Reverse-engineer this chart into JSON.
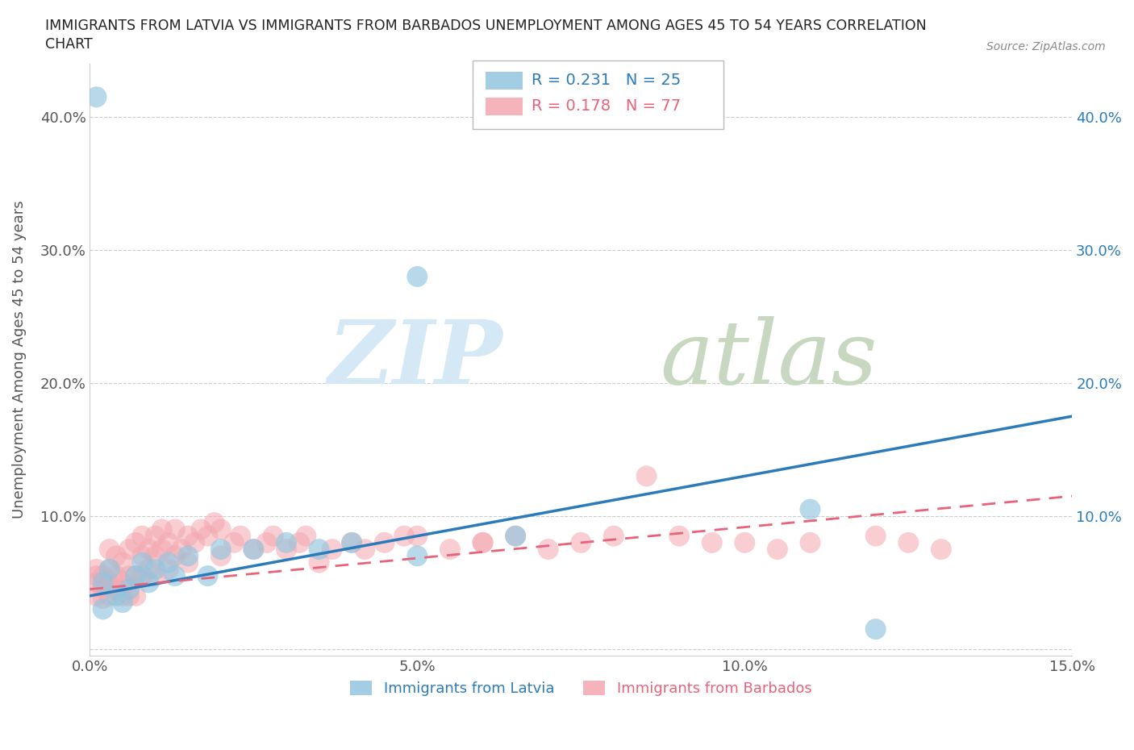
{
  "title_line1": "IMMIGRANTS FROM LATVIA VS IMMIGRANTS FROM BARBADOS UNEMPLOYMENT AMONG AGES 45 TO 54 YEARS CORRELATION",
  "title_line2": "CHART",
  "source": "Source: ZipAtlas.com",
  "xlabel": "",
  "ylabel": "Unemployment Among Ages 45 to 54 years",
  "xlim": [
    0,
    0.15
  ],
  "ylim": [
    -0.005,
    0.44
  ],
  "xticks": [
    0.0,
    0.05,
    0.1,
    0.15
  ],
  "xticklabels": [
    "0.0%",
    "5.0%",
    "10.0%",
    "15.0%"
  ],
  "yticks": [
    0.0,
    0.1,
    0.2,
    0.3,
    0.4
  ],
  "yticklabels": [
    "",
    "10.0%",
    "20.0%",
    "30.0%",
    "40.0%"
  ],
  "latvia_color": "#92c5de",
  "barbados_color": "#f4a6b0",
  "latvia_label": "Immigrants from Latvia",
  "barbados_label": "Immigrants from Barbados",
  "legend_R_latvia": "R = 0.231",
  "legend_N_latvia": "N = 25",
  "legend_R_barbados": "R = 0.178",
  "legend_N_barbados": "N = 77",
  "latvia_scatter_x": [
    0.001,
    0.002,
    0.003,
    0.004,
    0.005,
    0.006,
    0.007,
    0.008,
    0.009,
    0.01,
    0.012,
    0.013,
    0.015,
    0.018,
    0.02,
    0.025,
    0.03,
    0.035,
    0.04,
    0.05,
    0.065,
    0.11,
    0.05,
    0.12,
    0.002
  ],
  "latvia_scatter_y": [
    0.415,
    0.05,
    0.06,
    0.04,
    0.035,
    0.045,
    0.055,
    0.065,
    0.05,
    0.06,
    0.065,
    0.055,
    0.07,
    0.055,
    0.075,
    0.075,
    0.08,
    0.075,
    0.08,
    0.07,
    0.085,
    0.105,
    0.28,
    0.015,
    0.03
  ],
  "barbados_scatter_x": [
    0.001,
    0.001,
    0.001,
    0.001,
    0.002,
    0.002,
    0.002,
    0.003,
    0.003,
    0.003,
    0.003,
    0.004,
    0.004,
    0.004,
    0.005,
    0.005,
    0.005,
    0.006,
    0.006,
    0.006,
    0.007,
    0.007,
    0.007,
    0.008,
    0.008,
    0.008,
    0.009,
    0.009,
    0.01,
    0.01,
    0.01,
    0.011,
    0.011,
    0.012,
    0.012,
    0.013,
    0.013,
    0.014,
    0.015,
    0.015,
    0.016,
    0.017,
    0.018,
    0.019,
    0.02,
    0.02,
    0.022,
    0.023,
    0.025,
    0.027,
    0.028,
    0.03,
    0.032,
    0.033,
    0.035,
    0.037,
    0.04,
    0.042,
    0.045,
    0.048,
    0.05,
    0.055,
    0.06,
    0.065,
    0.07,
    0.075,
    0.08,
    0.085,
    0.09,
    0.095,
    0.1,
    0.105,
    0.11,
    0.12,
    0.125,
    0.13,
    0.06
  ],
  "barbados_scatter_y": [
    0.04,
    0.05,
    0.055,
    0.06,
    0.038,
    0.045,
    0.055,
    0.04,
    0.05,
    0.06,
    0.075,
    0.045,
    0.055,
    0.07,
    0.04,
    0.05,
    0.065,
    0.04,
    0.055,
    0.075,
    0.04,
    0.055,
    0.08,
    0.055,
    0.07,
    0.085,
    0.06,
    0.075,
    0.055,
    0.07,
    0.085,
    0.075,
    0.09,
    0.06,
    0.08,
    0.07,
    0.09,
    0.075,
    0.065,
    0.085,
    0.08,
    0.09,
    0.085,
    0.095,
    0.07,
    0.09,
    0.08,
    0.085,
    0.075,
    0.08,
    0.085,
    0.075,
    0.08,
    0.085,
    0.065,
    0.075,
    0.08,
    0.075,
    0.08,
    0.085,
    0.085,
    0.075,
    0.08,
    0.085,
    0.075,
    0.08,
    0.085,
    0.13,
    0.085,
    0.08,
    0.08,
    0.075,
    0.08,
    0.085,
    0.08,
    0.075,
    0.08
  ],
  "latvia_trend_x": [
    0.0,
    0.15
  ],
  "latvia_trend_y": [
    0.04,
    0.175
  ],
  "barbados_trend_x": [
    0.0,
    0.15
  ],
  "barbados_trend_y": [
    0.045,
    0.115
  ],
  "background_color": "#ffffff",
  "grid_color": "#cccccc",
  "watermark_zip_color": "#d8e8f5",
  "watermark_atlas_color": "#c8d8c8"
}
